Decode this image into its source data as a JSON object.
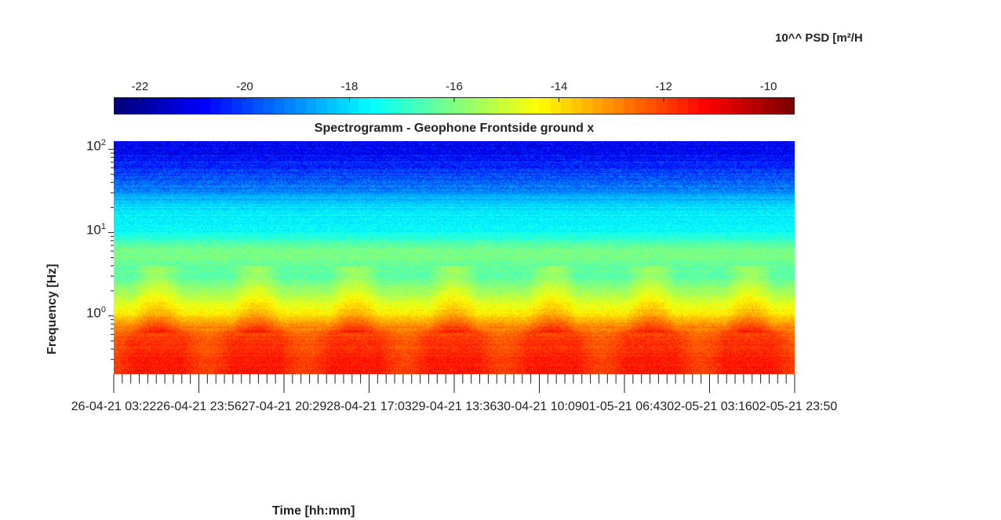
{
  "chart_data": {
    "type": "heatmap",
    "title": "Spectrogramm - Geophone Frontside ground x",
    "xlabel": "Time [hh:mm]",
    "ylabel": "Frequency [Hz]",
    "yscale": "log",
    "ylim": [
      0.2,
      125
    ],
    "y_ticks": [
      {
        "base": "10",
        "exp": "2",
        "value": 100
      },
      {
        "base": "10",
        "exp": "1",
        "value": 10
      },
      {
        "base": "10",
        "exp": "0",
        "value": 1
      }
    ],
    "x_tick_labels": [
      "26-04-21 03:22",
      "26-04-21 23:56",
      "27-04-21 20:29",
      "28-04-21 17:03",
      "29-04-21 13:36",
      "30-04-21 10:09",
      "01-05-21 06:43",
      "02-05-21 03:16",
      "02-05-21 23:50"
    ],
    "colorbar": {
      "label": "10^^ PSD [m²/H",
      "range": [
        -22.5,
        -9.5
      ],
      "ticks": [
        -22,
        -20,
        -18,
        -16,
        -14,
        -12,
        -10
      ],
      "tick_labels": [
        "-22",
        "-20",
        "-18",
        "-16",
        "-14",
        "-12",
        "-10"
      ],
      "colormap": "jet"
    },
    "approx_psd_profile_log10": [
      {
        "freq_hz": 100,
        "psd": -21.0
      },
      {
        "freq_hz": 50,
        "psd": -20.0
      },
      {
        "freq_hz": 20,
        "psd": -18.0
      },
      {
        "freq_hz": 10,
        "psd": -17.5
      },
      {
        "freq_hz": 6,
        "psd": -16.0
      },
      {
        "freq_hz": 3,
        "psd": -16.5
      },
      {
        "freq_hz": 1.5,
        "psd": -15.0
      },
      {
        "freq_hz": 1,
        "psd": -14.0
      },
      {
        "freq_hz": 0.6,
        "psd": -12.0
      },
      {
        "freq_hz": 0.3,
        "psd": -11.5
      }
    ]
  }
}
